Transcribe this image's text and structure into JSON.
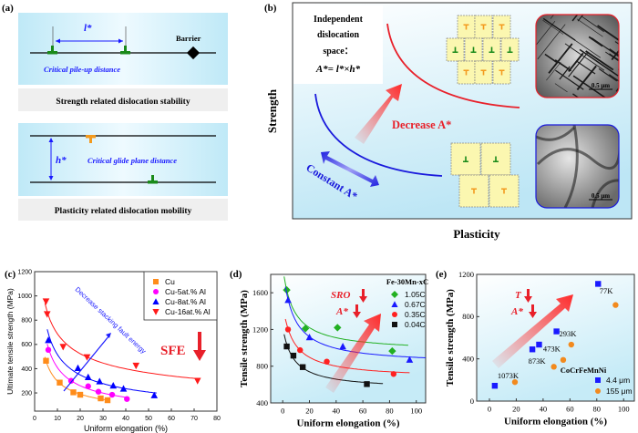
{
  "panel_a": {
    "label": "(a)",
    "l_star": "l*",
    "barrier": "Barrier",
    "pileup_caption": "Critical pile-up distance",
    "strength_caption": "Strength related dislocation stability",
    "h_star": "h*",
    "glide_caption": "Critical glide plane distance",
    "plasticity_caption": "Plasticity related dislocation mobility"
  },
  "panel_b": {
    "label": "(b)",
    "ylabel": "Strength",
    "xlabel": "Plasticity",
    "box_lines": [
      "Independent",
      "dislocation",
      "space：",
      "A*= l*×h*"
    ],
    "decrease": "Decrease A*",
    "constant": "Constant A*",
    "scale_bar_top": "0.5 μm",
    "scale_bar_bottom": "0.5 μm",
    "colors": {
      "high": "#e8202a",
      "low": "#1a1adc",
      "cell": "#fbf7b0"
    }
  },
  "chart_data": [
    {
      "panel": "(c)",
      "type": "scatter",
      "xlabel": "Uniform elongation (%)",
      "ylabel": "Ultimate tensile strength (MPa)",
      "xlim": [
        0,
        80
      ],
      "ylim": [
        50,
        1200
      ],
      "xticks": [
        0,
        10,
        20,
        30,
        40,
        50,
        60,
        70,
        80
      ],
      "yticks": [
        200,
        400,
        600,
        800,
        1000,
        1200
      ],
      "legend": "top-right",
      "fit": "power",
      "annotation": "Decrease stacking fault energy",
      "sfe_label": "SFE",
      "series": [
        {
          "name": "Cu",
          "marker": "square",
          "color": "#ff8c1a",
          "points": [
            [
              5,
              465
            ],
            [
              11,
              285
            ],
            [
              17,
              205
            ],
            [
              20,
              185
            ],
            [
              29,
              155
            ],
            [
              32,
              140
            ]
          ]
        },
        {
          "name": "Cu-5at.% Al",
          "marker": "circle",
          "color": "#ff00ff",
          "points": [
            [
              6,
              555
            ],
            [
              16,
              300
            ],
            [
              23.5,
              255
            ],
            [
              28,
              210
            ],
            [
              34,
              185
            ],
            [
              40.5,
              150
            ]
          ]
        },
        {
          "name": "Cu-8at.% Al",
          "marker": "triangle-up",
          "color": "#0000ff",
          "points": [
            [
              6,
              635
            ],
            [
              19,
              405
            ],
            [
              23.5,
              330
            ],
            [
              28.5,
              295
            ],
            [
              34.5,
              260
            ],
            [
              39,
              235
            ],
            [
              52.5,
              180
            ]
          ]
        },
        {
          "name": "Cu-16at.% Al",
          "marker": "triangle-down",
          "color": "#ff1a1a",
          "points": [
            [
              5,
              955
            ],
            [
              5.5,
              850
            ],
            [
              12.5,
              580
            ],
            [
              23,
              495
            ],
            [
              44.5,
              425
            ],
            [
              71.5,
              300
            ]
          ]
        }
      ]
    },
    {
      "panel": "(d)",
      "type": "scatter",
      "xlabel": "Uniform elongation (%)",
      "ylabel": "Tensile strength (MPa)",
      "xlim": [
        -9,
        107
      ],
      "ylim": [
        400,
        1800
      ],
      "xticks": [
        0,
        20,
        40,
        60,
        80,
        100
      ],
      "yticks": [
        400,
        800,
        1200,
        1600
      ],
      "legend_title": "Fe-30Mn-xC",
      "legend": "top-right",
      "fit": "hyperbolic",
      "annotations": [
        "SRO",
        "A*"
      ],
      "series": [
        {
          "name": "1.05C",
          "marker": "diamond",
          "color": "#22b022",
          "points": [
            [
              3,
              1630
            ],
            [
              17,
              1210
            ],
            [
              41,
              1220
            ],
            [
              82,
              965
            ]
          ]
        },
        {
          "name": "0.67C",
          "marker": "triangle-up",
          "color": "#1a1aff",
          "points": [
            [
              4,
              1520
            ],
            [
              20,
              1115
            ],
            [
              45,
              1015
            ],
            [
              95,
              870
            ]
          ]
        },
        {
          "name": "0.35C",
          "marker": "circle",
          "color": "#ff2020",
          "points": [
            [
              4,
              1200
            ],
            [
              13,
              975
            ],
            [
              33,
              850
            ],
            [
              83,
              715
            ]
          ]
        },
        {
          "name": "0.04C",
          "marker": "square",
          "color": "#111111",
          "points": [
            [
              3,
              1015
            ],
            [
              8,
              915
            ],
            [
              15,
              790
            ],
            [
              63,
              605
            ]
          ]
        }
      ]
    },
    {
      "panel": "(e)",
      "type": "scatter",
      "xlabel": "Uniform elongation (%)",
      "ylabel": "Tensile strength (MPa)",
      "xlim": [
        -9.5,
        108
      ],
      "ylim": [
        0,
        1200
      ],
      "xticks": [
        0,
        20,
        40,
        60,
        80,
        100
      ],
      "yticks": [
        0,
        400,
        800,
        1200
      ],
      "legend_title": "CoCrFeMnNi",
      "legend": "bottom-right",
      "annotations": [
        "T",
        "A*"
      ],
      "temperature_labels": [
        {
          "text": "77K",
          "x": 82,
          "y": 1020
        },
        {
          "text": "293K",
          "x": 52,
          "y": 615
        },
        {
          "text": "473K",
          "x": 40,
          "y": 470
        },
        {
          "text": "873K",
          "x": 29,
          "y": 355
        },
        {
          "text": "1073K",
          "x": 6,
          "y": 215
        }
      ],
      "series": [
        {
          "name": "4.4 μm",
          "marker": "square",
          "color": "#1a1aff",
          "points": [
            [
              4,
              145
            ],
            [
              32,
              490
            ],
            [
              37,
              535
            ],
            [
              50,
              660
            ],
            [
              81,
              1110
            ]
          ]
        },
        {
          "name": "155 μm",
          "marker": "circle",
          "color": "#f28a1e",
          "points": [
            [
              19,
              180
            ],
            [
              48,
              325
            ],
            [
              55,
              390
            ],
            [
              61,
              535
            ],
            [
              94,
              910
            ]
          ]
        }
      ]
    }
  ]
}
